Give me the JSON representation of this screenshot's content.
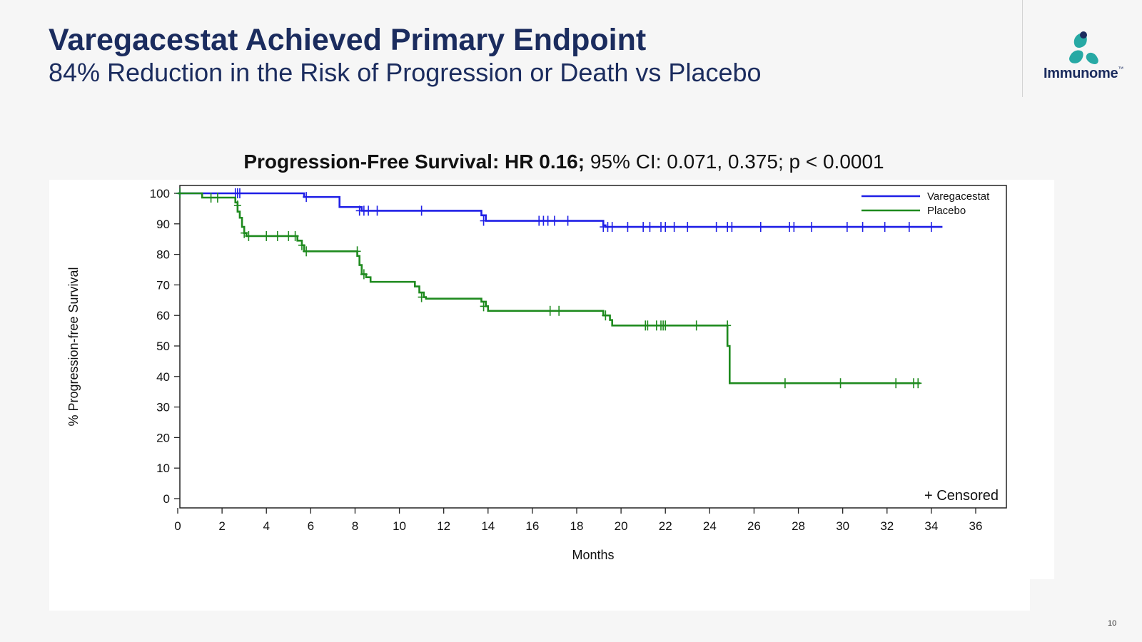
{
  "slide": {
    "title": "Varegacestat Achieved Primary Endpoint",
    "subtitle": "84% Reduction in the Risk of Progression or Death vs Placebo",
    "page_number": "10"
  },
  "logo": {
    "name": "Immunome",
    "trademark": "™",
    "colors": {
      "mark": "#27a9a4",
      "text": "#1b2c5e"
    }
  },
  "chart_heading": {
    "bold": "Progression-Free Survival: HR 0.16;",
    "regular": " 95% CI: 0.071, 0.375; p < 0.0001"
  },
  "chart_data": {
    "type": "line",
    "step": true,
    "xlabel": "Months",
    "ylabel": "% Progression-free Survival",
    "xlim": [
      0,
      36
    ],
    "ylim": [
      0,
      100
    ],
    "xticks": [
      "0",
      "2",
      "4",
      "6",
      "8",
      "10",
      "12",
      "14",
      "16",
      "18",
      "20",
      "22",
      "24",
      "26",
      "28",
      "30",
      "32",
      "34",
      "36"
    ],
    "yticks": [
      "0",
      "10",
      "20",
      "30",
      "40",
      "50",
      "60",
      "70",
      "80",
      "90",
      "100"
    ],
    "legend_position": "top-right",
    "censored_note": "+ Censored",
    "grid": false,
    "series": [
      {
        "name": "Varegacestat",
        "color": "#1f1fe6",
        "steps": [
          [
            0,
            100
          ],
          [
            5.7,
            98.8
          ],
          [
            7.3,
            95.5
          ],
          [
            8.3,
            94.3
          ],
          [
            13.7,
            92.8
          ],
          [
            13.9,
            91.0
          ],
          [
            19.2,
            89.5
          ],
          [
            19.3,
            89.0
          ],
          [
            34.5,
            89.0
          ]
        ],
        "censored": [
          [
            0.1,
            100
          ],
          [
            2.6,
            100
          ],
          [
            2.7,
            100
          ],
          [
            2.8,
            100
          ],
          [
            5.8,
            98.8
          ],
          [
            8.2,
            94.3
          ],
          [
            8.4,
            94.3
          ],
          [
            8.6,
            94.3
          ],
          [
            9.0,
            94.3
          ],
          [
            11.0,
            94.3
          ],
          [
            13.8,
            91.0
          ],
          [
            16.3,
            91.0
          ],
          [
            16.5,
            91.0
          ],
          [
            16.7,
            91.0
          ],
          [
            17.0,
            91.0
          ],
          [
            17.6,
            91.0
          ],
          [
            19.2,
            89.0
          ],
          [
            19.4,
            89.0
          ],
          [
            19.6,
            89.0
          ],
          [
            20.3,
            89.0
          ],
          [
            21.0,
            89.0
          ],
          [
            21.3,
            89.0
          ],
          [
            21.8,
            89.0
          ],
          [
            22.0,
            89.0
          ],
          [
            22.4,
            89.0
          ],
          [
            23.0,
            89.0
          ],
          [
            24.3,
            89.0
          ],
          [
            24.8,
            89.0
          ],
          [
            25.0,
            89.0
          ],
          [
            26.3,
            89.0
          ],
          [
            27.6,
            89.0
          ],
          [
            27.8,
            89.0
          ],
          [
            28.6,
            89.0
          ],
          [
            30.2,
            89.0
          ],
          [
            30.9,
            89.0
          ],
          [
            31.9,
            89.0
          ],
          [
            33.0,
            89.0
          ],
          [
            34.0,
            89.0
          ]
        ]
      },
      {
        "name": "Placebo",
        "color": "#1e8a1e",
        "steps": [
          [
            0,
            100
          ],
          [
            1.1,
            98.6
          ],
          [
            2.6,
            97.0
          ],
          [
            2.7,
            94.0
          ],
          [
            2.8,
            92.0
          ],
          [
            2.9,
            89.0
          ],
          [
            3.0,
            87.0
          ],
          [
            3.1,
            86.0
          ],
          [
            5.4,
            84.5
          ],
          [
            5.6,
            83.0
          ],
          [
            5.7,
            81.0
          ],
          [
            8.1,
            79.5
          ],
          [
            8.2,
            76.5
          ],
          [
            8.3,
            73.5
          ],
          [
            8.5,
            72.5
          ],
          [
            8.7,
            71.0
          ],
          [
            10.7,
            69.5
          ],
          [
            10.9,
            67.5
          ],
          [
            11.1,
            66.0
          ],
          [
            11.2,
            65.5
          ],
          [
            13.7,
            64.5
          ],
          [
            13.9,
            63.0
          ],
          [
            14.0,
            61.5
          ],
          [
            19.2,
            60.0
          ],
          [
            19.5,
            58.5
          ],
          [
            19.6,
            56.7
          ],
          [
            24.8,
            50.0
          ],
          [
            24.9,
            37.8
          ],
          [
            33.5,
            37.8
          ]
        ],
        "censored": [
          [
            0.1,
            100
          ],
          [
            1.5,
            98.6
          ],
          [
            1.8,
            98.6
          ],
          [
            2.7,
            96.0
          ],
          [
            3.0,
            87.0
          ],
          [
            3.2,
            86.0
          ],
          [
            4.0,
            86.0
          ],
          [
            4.5,
            86.0
          ],
          [
            5.0,
            86.0
          ],
          [
            5.3,
            86.0
          ],
          [
            5.6,
            83.0
          ],
          [
            5.8,
            81.0
          ],
          [
            8.1,
            81.0
          ],
          [
            8.4,
            73.5
          ],
          [
            11.0,
            66.0
          ],
          [
            13.8,
            63.0
          ],
          [
            16.8,
            61.5
          ],
          [
            17.2,
            61.5
          ],
          [
            19.3,
            60.0
          ],
          [
            21.1,
            56.7
          ],
          [
            21.2,
            56.7
          ],
          [
            21.6,
            56.7
          ],
          [
            21.8,
            56.7
          ],
          [
            21.9,
            56.7
          ],
          [
            22.0,
            56.7
          ],
          [
            23.4,
            56.7
          ],
          [
            24.8,
            56.7
          ],
          [
            27.4,
            37.8
          ],
          [
            29.9,
            37.8
          ],
          [
            32.4,
            37.8
          ],
          [
            33.2,
            37.8
          ],
          [
            33.4,
            37.8
          ]
        ]
      }
    ]
  }
}
